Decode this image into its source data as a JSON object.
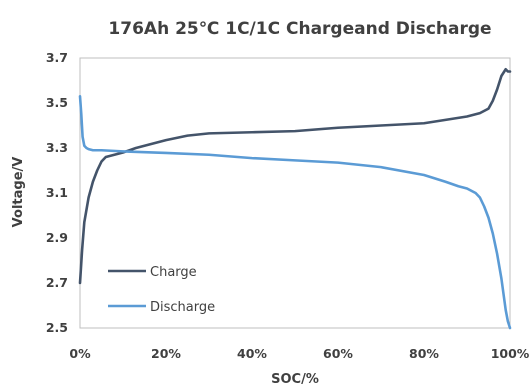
{
  "chart_data": {
    "type": "line",
    "title": "176Ah 25℃ 1C/1C Chargeand Discharge",
    "xlabel": "SOC/%",
    "ylabel": "Voltage/V",
    "xlim": [
      0,
      100
    ],
    "ylim": [
      2.5,
      3.7
    ],
    "x_ticks": [
      0,
      20,
      40,
      60,
      80,
      100
    ],
    "x_tick_labels": [
      "0%",
      "20%",
      "40%",
      "60%",
      "80%",
      "100%"
    ],
    "y_ticks": [
      2.5,
      2.7,
      2.9,
      3.1,
      3.3,
      3.5,
      3.7
    ],
    "y_tick_labels": [
      "2.5",
      "2.7",
      "2.9",
      "3.1",
      "3.3",
      "3.5",
      "3.7"
    ],
    "grid": false,
    "legend_position": "bottom-left",
    "series": [
      {
        "name": "Charge",
        "color": "#44546a",
        "x": [
          0,
          0.5,
          1,
          2,
          3,
          4,
          5,
          6,
          8,
          10,
          13,
          16,
          20,
          25,
          30,
          40,
          50,
          60,
          70,
          80,
          85,
          90,
          93,
          95,
          96,
          97,
          98,
          99,
          99.5,
          100
        ],
        "y": [
          2.7,
          2.85,
          2.97,
          3.08,
          3.15,
          3.2,
          3.24,
          3.26,
          3.27,
          3.28,
          3.3,
          3.315,
          3.335,
          3.355,
          3.365,
          3.37,
          3.375,
          3.39,
          3.4,
          3.41,
          3.425,
          3.44,
          3.455,
          3.475,
          3.51,
          3.56,
          3.62,
          3.65,
          3.64,
          3.64
        ]
      },
      {
        "name": "Discharge",
        "color": "#5b9bd5",
        "x": [
          0,
          0.3,
          0.6,
          1,
          1.5,
          2,
          3,
          5,
          10,
          20,
          30,
          40,
          50,
          60,
          70,
          80,
          85,
          88,
          90,
          92,
          93,
          94,
          95,
          96,
          97,
          98,
          98.5,
          99,
          99.5,
          100
        ],
        "y": [
          3.53,
          3.45,
          3.35,
          3.31,
          3.3,
          3.295,
          3.29,
          3.29,
          3.285,
          3.278,
          3.27,
          3.255,
          3.245,
          3.235,
          3.215,
          3.18,
          3.15,
          3.13,
          3.12,
          3.1,
          3.08,
          3.04,
          2.99,
          2.92,
          2.83,
          2.72,
          2.65,
          2.58,
          2.53,
          2.5
        ]
      }
    ]
  }
}
